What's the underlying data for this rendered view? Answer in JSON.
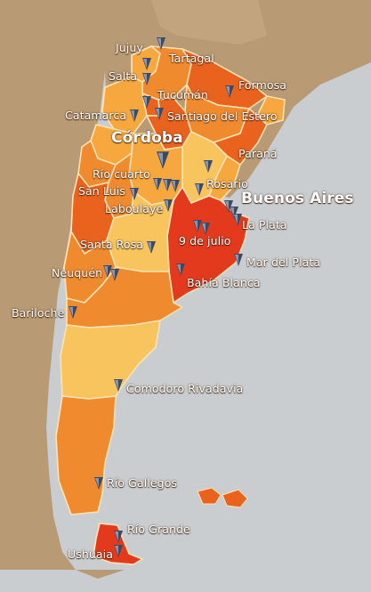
{
  "map": {
    "colors": {
      "sea": "#c9cdd0",
      "land_neighbor": "#b89a74",
      "light": "#f7c45e",
      "medium": "#f6a83e",
      "orange": "#f08a2f",
      "dark": "#e9631f",
      "red": "#e33a1e",
      "border": "#fde3b4",
      "pin": "#3b4a66"
    },
    "cities": [
      {
        "id": "jujuy",
        "name": "Jujuy"
      },
      {
        "id": "tartagal",
        "name": "Tartagal"
      },
      {
        "id": "salta",
        "name": "Salta"
      },
      {
        "id": "formosa",
        "name": "Formosa"
      },
      {
        "id": "tucuman",
        "name": "Tucumán"
      },
      {
        "id": "catamarca",
        "name": "Catamarca"
      },
      {
        "id": "santiago",
        "name": "Santiago del Estero"
      },
      {
        "id": "cordoba",
        "name": "Córdoba"
      },
      {
        "id": "parana",
        "name": "Paraná"
      },
      {
        "id": "riocuarto",
        "name": "Río cuarto"
      },
      {
        "id": "sanluis",
        "name": "San Luis"
      },
      {
        "id": "rosario",
        "name": "Rosario"
      },
      {
        "id": "laboulaye",
        "name": "Laboulaye"
      },
      {
        "id": "buenosaires",
        "name": "Buenos Aires"
      },
      {
        "id": "laplata",
        "name": "La Plata"
      },
      {
        "id": "santarosa",
        "name": "Santa Rosa"
      },
      {
        "id": "9dejulio",
        "name": "9 de julio"
      },
      {
        "id": "mardelplata",
        "name": "Mar del Plata"
      },
      {
        "id": "neuquen",
        "name": "Neuquén"
      },
      {
        "id": "bahiablanca",
        "name": "Bahía Blanca"
      },
      {
        "id": "bariloche",
        "name": "Bariloche"
      },
      {
        "id": "comodoro",
        "name": "Comodoro Rivadavia"
      },
      {
        "id": "riogallegos",
        "name": "Río Gallegos"
      },
      {
        "id": "riogrande",
        "name": "Río Grande"
      },
      {
        "id": "ushuaia",
        "name": "Ushuaia"
      }
    ]
  }
}
